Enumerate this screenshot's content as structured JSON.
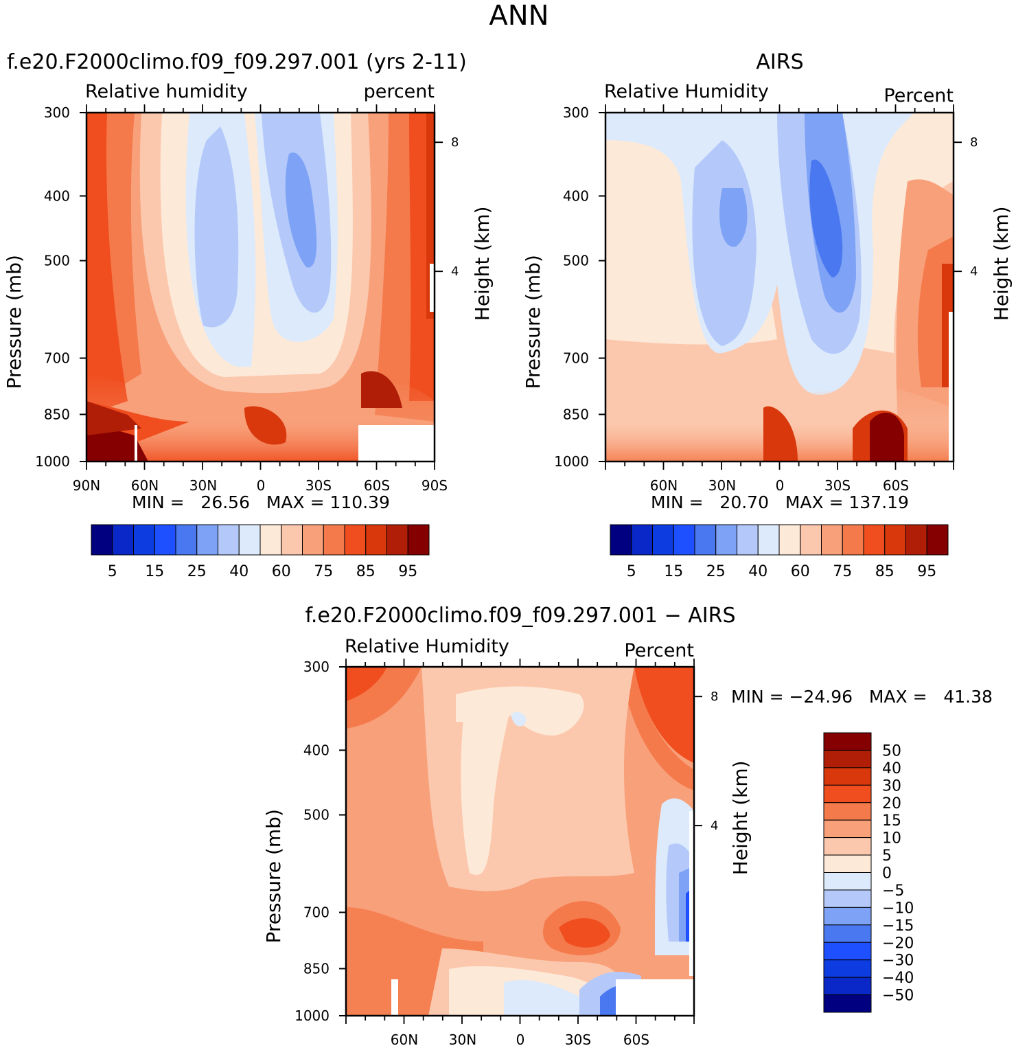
{
  "page_title": "ANN",
  "chart_data": [
    {
      "type": "heatmap",
      "id": "model",
      "title": "f.e20.F2000climo.f09_f09.297.001 (yrs 2-11)",
      "left_string": "Relative humidity",
      "right_string": "percent",
      "ylabel": "Pressure (mb)",
      "right_ylabel": "Height (km)",
      "xticks": [
        "90N",
        "60N",
        "30N",
        "0",
        "30S",
        "60S",
        "90S"
      ],
      "yticks": [
        "300",
        "400",
        "500",
        "700",
        "850",
        "1000"
      ],
      "height_ticks": [
        "8",
        "4"
      ],
      "stats_text": "MIN =   26.56   MAX = 110.39",
      "min": 26.56,
      "max": 110.39,
      "colorbar": {
        "orientation": "horizontal",
        "levels": [
          "5",
          "15",
          "25",
          "40",
          "60",
          "75",
          "85",
          "95"
        ],
        "colors": [
          "#000080",
          "#0a27c8",
          "#0d3ce0",
          "#1e50ff",
          "#4a78f0",
          "#7ea2f5",
          "#b4c9fa",
          "#dceafb",
          "#fde9d8",
          "#fbc8ad",
          "#f8a07a",
          "#f47a4b",
          "#f04e1f",
          "#d8380c",
          "#b01e08",
          "#850000"
        ]
      }
    },
    {
      "type": "heatmap",
      "id": "obs",
      "title": "AIRS",
      "left_string": "Relative Humidity",
      "right_string": "Percent",
      "ylabel": "Pressure (mb)",
      "right_ylabel": "Height (km)",
      "xticks": [
        "60N",
        "30N",
        "0",
        "30S",
        "60S"
      ],
      "yticks": [
        "300",
        "400",
        "500",
        "700",
        "850",
        "1000"
      ],
      "height_ticks": [
        "8",
        "4"
      ],
      "stats_text": "MIN =   20.70   MAX = 137.19",
      "min": 20.7,
      "max": 137.19,
      "colorbar": {
        "orientation": "horizontal",
        "levels": [
          "5",
          "15",
          "25",
          "40",
          "60",
          "75",
          "85",
          "95"
        ],
        "colors": [
          "#000080",
          "#0a27c8",
          "#0d3ce0",
          "#1e50ff",
          "#4a78f0",
          "#7ea2f5",
          "#b4c9fa",
          "#dceafb",
          "#fde9d8",
          "#fbc8ad",
          "#f8a07a",
          "#f47a4b",
          "#f04e1f",
          "#d8380c",
          "#b01e08",
          "#850000"
        ]
      }
    },
    {
      "type": "heatmap",
      "id": "diff",
      "title": "f.e20.F2000climo.f09_f09.297.001 − AIRS",
      "left_string": "Relative Humidity",
      "right_string": "Percent",
      "ylabel": "Pressure (mb)",
      "right_ylabel": "Height (km)",
      "xticks": [
        "60N",
        "30N",
        "0",
        "30S",
        "60S"
      ],
      "yticks": [
        "300",
        "400",
        "500",
        "700",
        "850",
        "1000"
      ],
      "height_ticks": [
        "8",
        "4"
      ],
      "stats_text": "MIN = −24.96   MAX =   41.38",
      "min": -24.96,
      "max": 41.38,
      "colorbar": {
        "orientation": "vertical",
        "levels": [
          "50",
          "40",
          "30",
          "20",
          "15",
          "10",
          "5",
          "0",
          "−5",
          "−10",
          "−15",
          "−20",
          "−30",
          "−40",
          "−50"
        ],
        "colors": [
          "#850000",
          "#b01e08",
          "#d8380c",
          "#f04e1f",
          "#f47a4b",
          "#f8a07a",
          "#fbc8ad",
          "#fde9d8",
          "#dceafb",
          "#b4c9fa",
          "#7ea2f5",
          "#4a78f0",
          "#1e50ff",
          "#0d3ce0",
          "#0a27c8",
          "#000080"
        ]
      }
    }
  ]
}
